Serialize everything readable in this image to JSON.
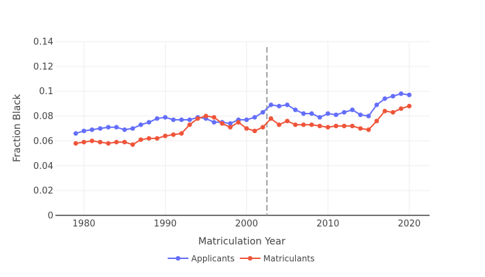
{
  "chart_data": {
    "type": "line",
    "title": "",
    "xlabel": "Matriculation Year",
    "ylabel": "Fraction Black",
    "xlim": [
      1976.5,
      2022.5
    ],
    "ylim": [
      0,
      0.14
    ],
    "xticks": [
      1980,
      1990,
      2000,
      2010,
      2020
    ],
    "xtick_labels": [
      "1980",
      "1990",
      "2000",
      "2010",
      "2020"
    ],
    "yticks": [
      0,
      0.02,
      0.04,
      0.06,
      0.08,
      0.1,
      0.12,
      0.14
    ],
    "ytick_labels": [
      "0",
      "0.02",
      "0.04",
      "0.06",
      "0.08",
      "0.1",
      "0.12",
      "0.14"
    ],
    "grid": true,
    "legend_position": "bottom-center",
    "vline": {
      "x": 2002.5,
      "color": "#a0a0a0",
      "dash": true
    },
    "x": [
      1979,
      1980,
      1981,
      1982,
      1983,
      1984,
      1985,
      1986,
      1987,
      1988,
      1989,
      1990,
      1991,
      1992,
      1993,
      1994,
      1995,
      1996,
      1997,
      1998,
      1999,
      2000,
      2001,
      2002,
      2003,
      2004,
      2005,
      2006,
      2007,
      2008,
      2009,
      2010,
      2011,
      2012,
      2013,
      2014,
      2015,
      2016,
      2017,
      2018,
      2019,
      2020
    ],
    "series": [
      {
        "name": "Applicants",
        "color": "#636efa",
        "values": [
          0.066,
          0.068,
          0.069,
          0.07,
          0.071,
          0.071,
          0.069,
          0.07,
          0.073,
          0.075,
          0.078,
          0.079,
          0.077,
          0.077,
          0.077,
          0.079,
          0.078,
          0.075,
          0.075,
          0.074,
          0.077,
          0.077,
          0.079,
          0.083,
          0.089,
          0.088,
          0.089,
          0.085,
          0.082,
          0.082,
          0.079,
          0.082,
          0.081,
          0.083,
          0.085,
          0.081,
          0.08,
          0.089,
          0.094,
          0.096,
          0.098,
          0.097
        ]
      },
      {
        "name": "Matriculants",
        "color": "#ef553b",
        "values": [
          0.058,
          0.059,
          0.06,
          0.059,
          0.058,
          0.059,
          0.059,
          0.057,
          0.061,
          0.062,
          0.062,
          0.064,
          0.065,
          0.066,
          0.073,
          0.078,
          0.08,
          0.079,
          0.074,
          0.071,
          0.075,
          0.07,
          0.068,
          0.071,
          0.078,
          0.073,
          0.076,
          0.073,
          0.073,
          0.073,
          0.072,
          0.071,
          0.072,
          0.072,
          0.072,
          0.07,
          0.069,
          0.076,
          0.084,
          0.083,
          0.086,
          0.088
        ]
      }
    ]
  }
}
